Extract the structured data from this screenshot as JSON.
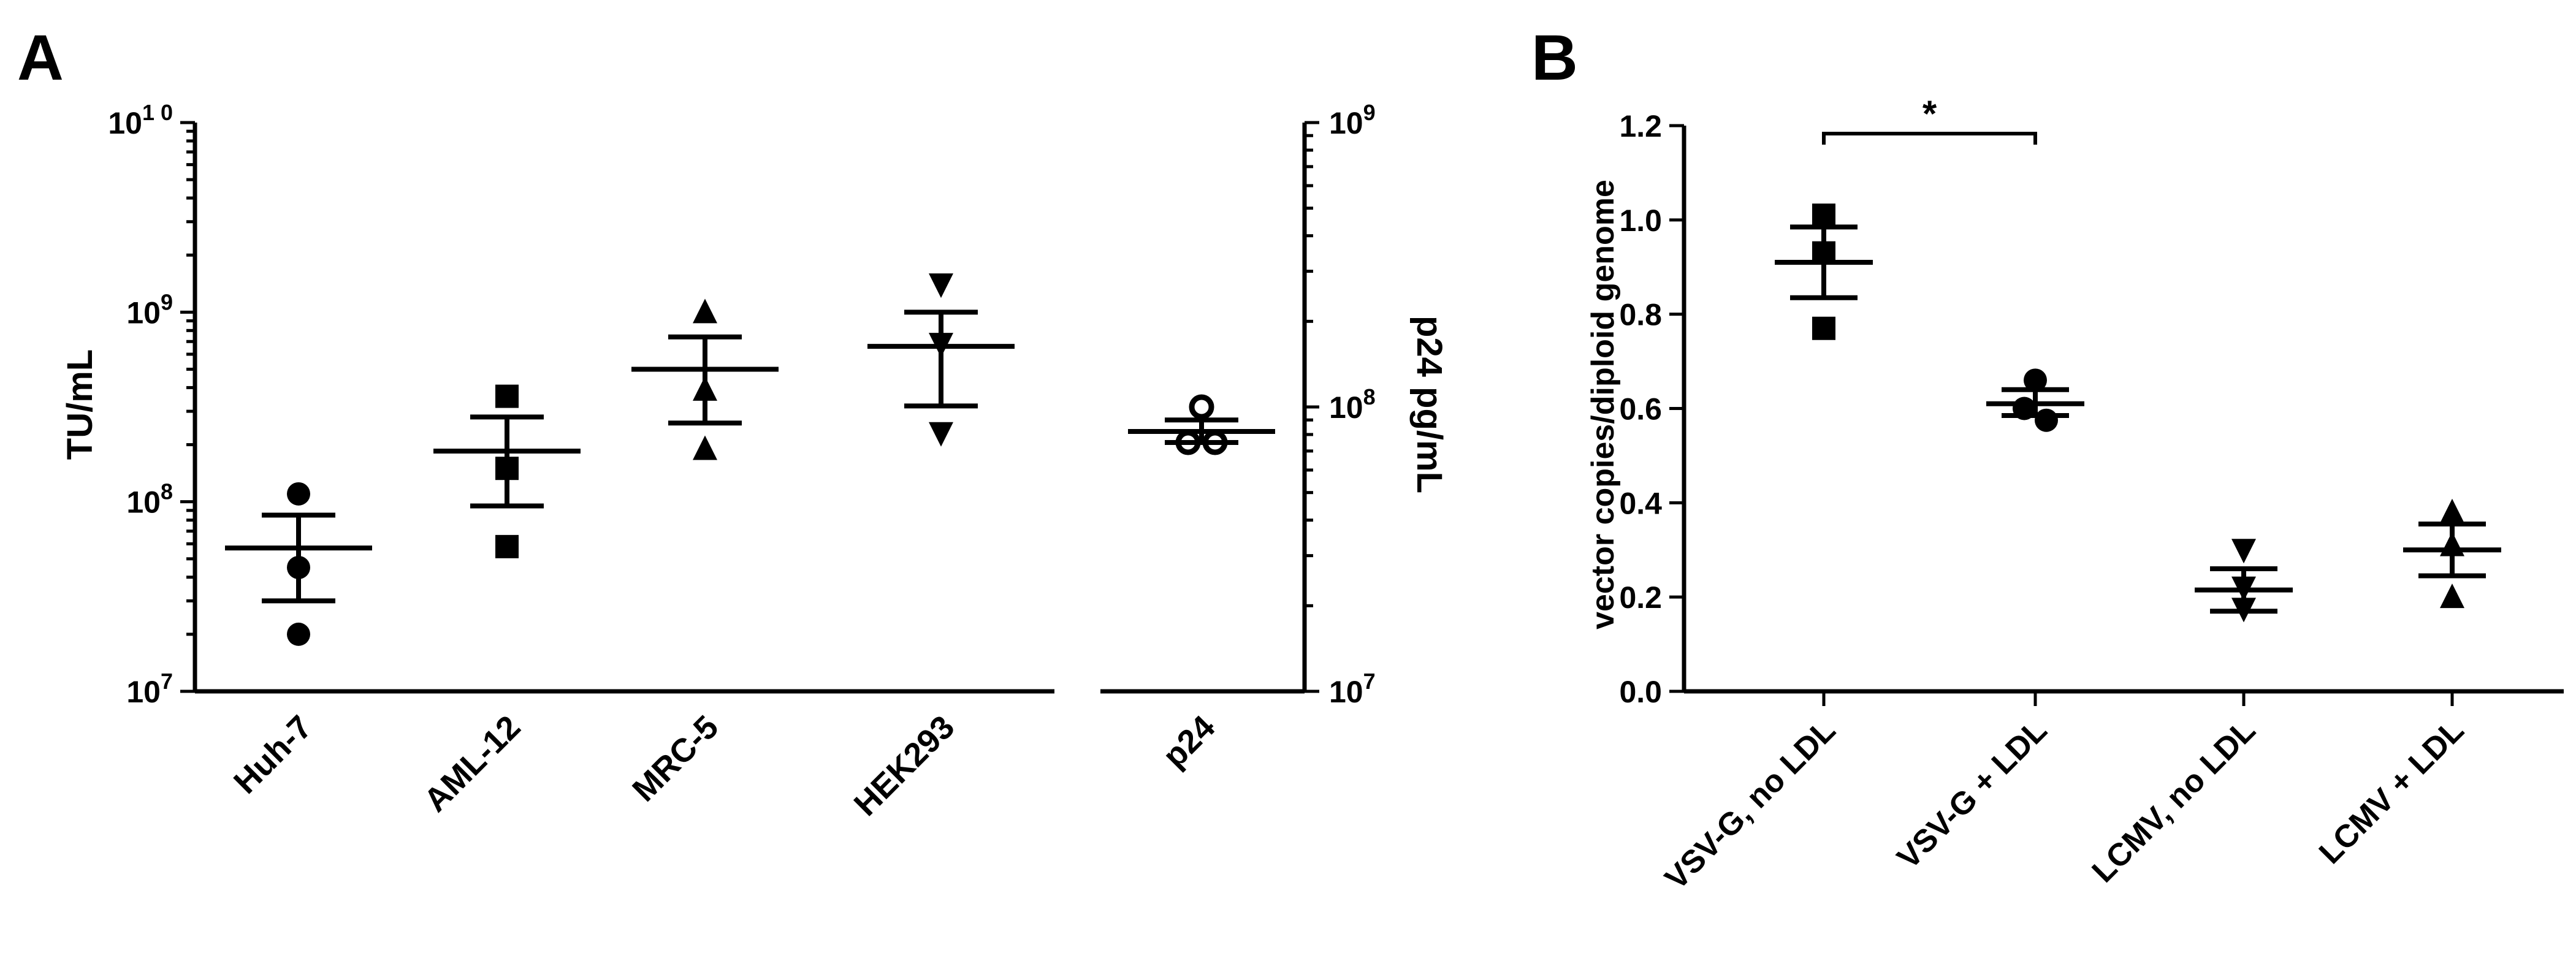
{
  "chart_data": [
    {
      "panel_label": "A",
      "type": "scatter",
      "categories": [
        "Huh-7",
        "AML-12",
        "MRC-5",
        "HEK293",
        "p24"
      ],
      "ylabel": "TU/mL",
      "yscale": "log",
      "ylim": [
        10000000,
        10000000000
      ],
      "yticks": [
        {
          "value": 10000000,
          "base": "10",
          "exp": "7"
        },
        {
          "value": 100000000,
          "base": "10",
          "exp": "8"
        },
        {
          "value": 1000000000,
          "base": "10",
          "exp": "9"
        },
        {
          "value": 10000000000,
          "base": "10",
          "exp": "1 0"
        }
      ],
      "y2label": "p24 pg/mL",
      "y2scale": "log",
      "y2lim": [
        10000000,
        1000000000
      ],
      "y2ticks": [
        {
          "value": 10000000,
          "base": "10",
          "exp": "7"
        },
        {
          "value": 100000000,
          "base": "10",
          "exp": "8"
        },
        {
          "value": 1000000000,
          "base": "10",
          "exp": "9"
        }
      ],
      "series": [
        {
          "category": "Huh-7",
          "marker": "circle",
          "axis": "left",
          "points": [
            110000000,
            45000000,
            20000000
          ],
          "mean": 57000000,
          "err": [
            30000000,
            85000000
          ]
        },
        {
          "category": "AML-12",
          "marker": "square",
          "axis": "left",
          "points": [
            360000000,
            150000000,
            58000000
          ],
          "mean": 185000000,
          "err": [
            95000000,
            280000000
          ]
        },
        {
          "category": "MRC-5",
          "marker": "triangle-up",
          "axis": "left",
          "points": [
            1000000000,
            390000000,
            190000000
          ],
          "mean": 500000000,
          "err": [
            260000000,
            740000000
          ]
        },
        {
          "category": "HEK293",
          "marker": "triangle-down",
          "axis": "left",
          "points": [
            1400000000,
            680000000,
            230000000
          ],
          "mean": 660000000,
          "err": [
            320000000,
            1000000000
          ]
        },
        {
          "category": "p24",
          "marker": "open-circle",
          "axis": "right",
          "points": [
            100000000,
            75000000,
            75000000
          ],
          "mean": 82000000,
          "err": [
            75000000,
            90000000
          ]
        }
      ]
    },
    {
      "panel_label": "B",
      "type": "scatter",
      "categories": [
        "VSV-G, no LDL",
        "VSV-G + LDL",
        "LCMV, no LDL",
        "LCMV + LDL"
      ],
      "ylabel": "vector copies/diploid genome",
      "ylim": [
        0,
        1.2
      ],
      "yticks": [
        "0.0",
        "0.2",
        "0.4",
        "0.6",
        "0.8",
        "1.0",
        "1.2"
      ],
      "series": [
        {
          "category": "VSV-G, no LDL",
          "marker": "square",
          "points": [
            1.01,
            0.93,
            0.77
          ],
          "mean": 0.91,
          "err": [
            0.835,
            0.985
          ]
        },
        {
          "category": "VSV-G + LDL",
          "marker": "circle",
          "points": [
            0.66,
            0.6,
            0.575
          ],
          "mean": 0.61,
          "err": [
            0.585,
            0.64
          ]
        },
        {
          "category": "LCMV, no LDL",
          "marker": "triangle-down",
          "points": [
            0.3,
            0.22,
            0.175
          ],
          "mean": 0.215,
          "err": [
            0.17,
            0.26
          ]
        },
        {
          "category": "LCMV + LDL",
          "marker": "triangle-up",
          "points": [
            0.38,
            0.31,
            0.2
          ],
          "mean": 0.3,
          "err": [
            0.245,
            0.355
          ]
        }
      ],
      "annotations": [
        {
          "text": "*",
          "between": [
            "VSV-G, no LDL",
            "VSV-G + LDL"
          ]
        }
      ]
    }
  ]
}
